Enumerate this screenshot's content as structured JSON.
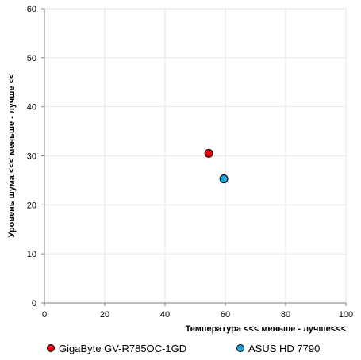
{
  "chart_data": {
    "type": "scatter",
    "title": "",
    "xlabel": "Температура  <<< меньше - лучше<<<",
    "ylabel": "Уровень шума <<< меньше - лучше <<",
    "xlim": [
      0,
      100
    ],
    "ylim": [
      0,
      60
    ],
    "x_ticks": [
      0,
      20,
      40,
      60,
      80,
      100
    ],
    "y_ticks": [
      0,
      10,
      20,
      30,
      40,
      50,
      60
    ],
    "grid": true,
    "legend_position": "bottom",
    "series": [
      {
        "name": "GigaByte GV-R785OC-1GD",
        "x": 54.5,
        "y": 30.5,
        "color": "#e8000b"
      },
      {
        "name": "ASUS HD 7790",
        "x": 59.5,
        "y": 25.3,
        "color": "#1ea0d8"
      }
    ]
  }
}
